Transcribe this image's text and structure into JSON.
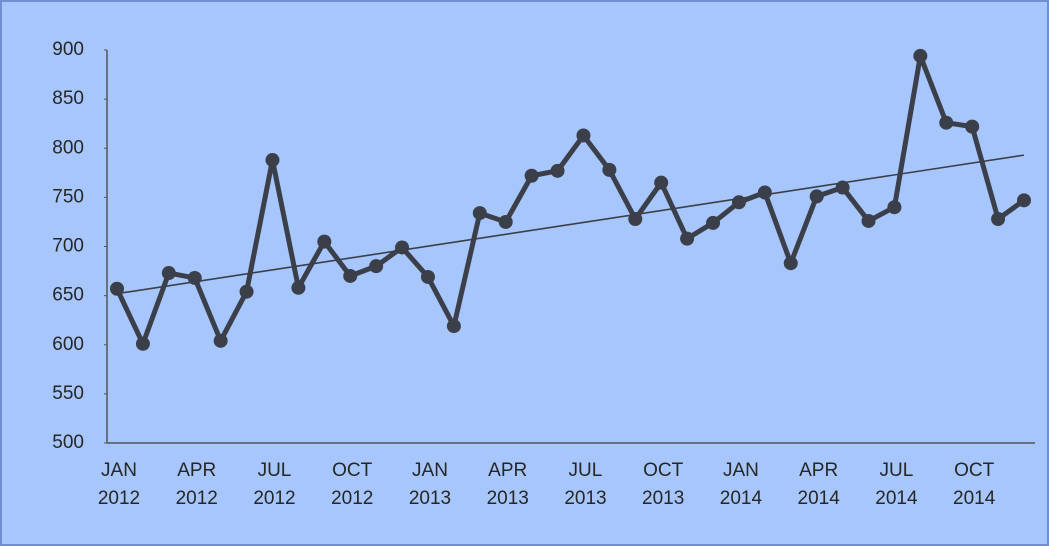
{
  "chart_data": {
    "type": "line",
    "categories": [
      "JAN 2012",
      null,
      null,
      "APR 2012",
      null,
      null,
      "JUL 2012",
      null,
      null,
      "OCT 2012",
      null,
      null,
      "JAN 2013",
      null,
      null,
      "APR 2013",
      null,
      null,
      "JUL 2013",
      null,
      null,
      "OCT 2013",
      null,
      null,
      "JAN 2014",
      null,
      null,
      "APR 2014",
      null,
      null,
      "JUL 2014",
      null,
      null,
      "OCT 2014",
      null,
      null
    ],
    "series": [
      {
        "color": "#3b3f4a",
        "values": [
          657,
          601,
          673,
          668,
          604,
          654,
          788,
          658,
          705,
          670,
          680,
          699,
          669,
          619,
          734,
          725,
          772,
          777,
          813,
          778,
          728,
          765,
          708,
          724,
          745,
          755,
          683,
          751,
          760,
          726,
          740,
          894,
          826,
          822,
          728,
          747
        ]
      }
    ],
    "trend": [
      652,
      793
    ],
    "ylim": [
      500,
      900
    ],
    "yticks": [
      500,
      550,
      600,
      650,
      700,
      750,
      800,
      850,
      900
    ]
  }
}
